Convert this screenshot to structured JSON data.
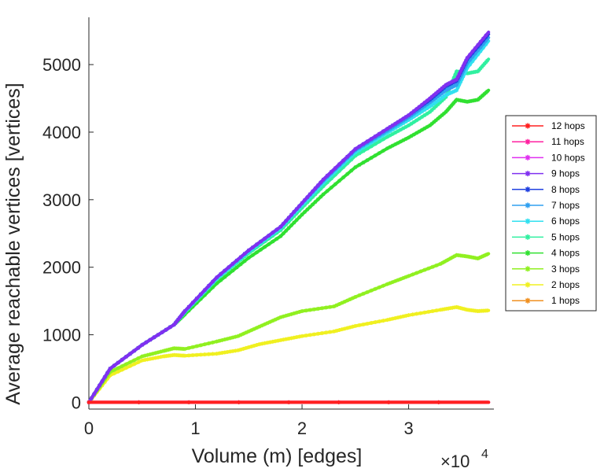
{
  "chart_data": {
    "type": "line",
    "xlabel": "Volume (m) [edges]",
    "ylabel": "Average reachable vertices [vertices]",
    "x_exponent_label": "×10",
    "x_exponent_power": "4",
    "xlim": [
      0,
      38000
    ],
    "ylim": [
      -100,
      5700
    ],
    "xticks": [
      0,
      10000,
      20000,
      30000
    ],
    "xtick_labels": [
      "0",
      "1",
      "2",
      "3"
    ],
    "yticks": [
      0,
      1000,
      2000,
      3000,
      4000,
      5000
    ],
    "ytick_labels": [
      "0",
      "1000",
      "2000",
      "3000",
      "4000",
      "5000"
    ],
    "grid": false,
    "legend_position": "right",
    "series": [
      {
        "name": "12 hops",
        "color": "#ff2020",
        "x": [
          0,
          37500
        ],
        "y": [
          0,
          0
        ]
      },
      {
        "name": "11 hops",
        "color": "#ff20a0",
        "x": [
          0,
          37500
        ],
        "y": [
          0,
          0
        ]
      },
      {
        "name": "10 hops",
        "color": "#e030f0",
        "x": [
          0,
          37500
        ],
        "y": [
          0,
          0
        ]
      },
      {
        "name": "9 hops",
        "color": "#8030f0",
        "x": [
          0,
          2000,
          5000,
          8000,
          9000,
          12000,
          15000,
          18000,
          20000,
          22000,
          25000,
          28000,
          30000,
          32000,
          33500,
          34500,
          35500,
          37500
        ],
        "y": [
          0,
          500,
          850,
          1150,
          1350,
          1850,
          2250,
          2600,
          2950,
          3300,
          3750,
          4050,
          4250,
          4500,
          4700,
          4780,
          5100,
          5480
        ]
      },
      {
        "name": "8 hops",
        "color": "#2040e0",
        "x": [
          0,
          2000,
          5000,
          8000,
          9000,
          12000,
          15000,
          18000,
          20000,
          22000,
          25000,
          28000,
          30000,
          32000,
          33500,
          34500,
          35500,
          37500
        ],
        "y": [
          0,
          500,
          850,
          1150,
          1350,
          1850,
          2250,
          2600,
          2950,
          3300,
          3750,
          4050,
          4250,
          4480,
          4680,
          4760,
          5080,
          5450
        ]
      },
      {
        "name": "7 hops",
        "color": "#30a0f0",
        "x": [
          0,
          2000,
          5000,
          8000,
          9000,
          12000,
          15000,
          18000,
          20000,
          22000,
          25000,
          28000,
          30000,
          32000,
          33500,
          34500,
          35500,
          37500
        ],
        "y": [
          0,
          500,
          850,
          1150,
          1350,
          1850,
          2250,
          2600,
          2950,
          3280,
          3730,
          4020,
          4220,
          4440,
          4620,
          4700,
          5020,
          5400
        ]
      },
      {
        "name": "6 hops",
        "color": "#30e0f0",
        "x": [
          0,
          2000,
          5000,
          8000,
          9000,
          12000,
          15000,
          18000,
          20000,
          22000,
          25000,
          28000,
          30000,
          32000,
          33500,
          34500,
          35500,
          37500
        ],
        "y": [
          0,
          500,
          850,
          1150,
          1340,
          1830,
          2230,
          2580,
          2920,
          3250,
          3700,
          3990,
          4180,
          4380,
          4550,
          4620,
          4950,
          5350
        ]
      },
      {
        "name": "5 hops",
        "color": "#30f0a0",
        "x": [
          0,
          2000,
          5000,
          8000,
          9000,
          12000,
          15000,
          18000,
          20000,
          22000,
          25000,
          28000,
          30000,
          32000,
          33500,
          34500,
          35500,
          36500,
          37500
        ],
        "y": [
          0,
          500,
          850,
          1150,
          1330,
          1820,
          2210,
          2550,
          2880,
          3200,
          3650,
          3930,
          4100,
          4300,
          4520,
          4900,
          4870,
          4900,
          5080
        ]
      },
      {
        "name": "4 hops",
        "color": "#30e030",
        "x": [
          0,
          2000,
          5000,
          8000,
          9000,
          12000,
          15000,
          18000,
          20000,
          22000,
          25000,
          28000,
          30000,
          32000,
          33500,
          34500,
          35500,
          36500,
          37500
        ],
        "y": [
          0,
          500,
          850,
          1150,
          1300,
          1760,
          2140,
          2460,
          2780,
          3080,
          3480,
          3760,
          3920,
          4100,
          4300,
          4480,
          4450,
          4480,
          4620
        ]
      },
      {
        "name": "3 hops",
        "color": "#90f020",
        "x": [
          0,
          2000,
          5000,
          7000,
          8000,
          9000,
          12000,
          14000,
          16000,
          18000,
          20000,
          23000,
          25000,
          28000,
          30000,
          33000,
          34500,
          35500,
          36500,
          37500
        ],
        "y": [
          0,
          450,
          680,
          760,
          800,
          790,
          900,
          980,
          1120,
          1260,
          1350,
          1420,
          1560,
          1750,
          1870,
          2050,
          2180,
          2160,
          2130,
          2200
        ]
      },
      {
        "name": "2 hops",
        "color": "#f0f020",
        "x": [
          0,
          2000,
          5000,
          7000,
          8000,
          9000,
          12000,
          14000,
          16000,
          18000,
          20000,
          23000,
          25000,
          28000,
          30000,
          33000,
          34500,
          35500,
          36500,
          37500
        ],
        "y": [
          0,
          400,
          620,
          680,
          700,
          690,
          720,
          770,
          860,
          920,
          980,
          1050,
          1130,
          1220,
          1290,
          1370,
          1410,
          1370,
          1350,
          1360
        ]
      },
      {
        "name": "1 hops",
        "color": "#f09020",
        "x": [
          0,
          37500
        ],
        "y": [
          0,
          0
        ]
      }
    ]
  }
}
